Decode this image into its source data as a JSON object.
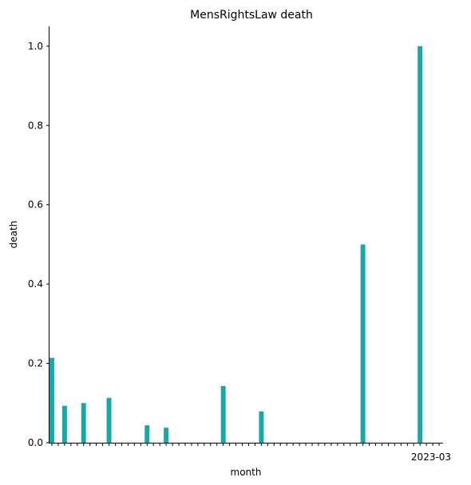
{
  "chart_data": {
    "type": "bar",
    "title": "MensRightsLaw death",
    "xlabel": "month",
    "ylabel": "death",
    "ylim": [
      0,
      1.05
    ],
    "yticks": [
      "0.0",
      "0.2",
      "0.4",
      "0.6",
      "0.8",
      "1.0"
    ],
    "ytick_values": [
      0,
      0.2,
      0.4,
      0.6,
      0.8,
      1.0
    ],
    "bar_color": "#17a9a9",
    "x_tick_label": "2023-03",
    "category_count": 62,
    "bars": [
      {
        "index": 0,
        "value": 0.214
      },
      {
        "index": 2,
        "value": 0.093
      },
      {
        "index": 5,
        "value": 0.1
      },
      {
        "index": 9,
        "value": 0.113
      },
      {
        "index": 15,
        "value": 0.044
      },
      {
        "index": 18,
        "value": 0.038
      },
      {
        "index": 27,
        "value": 0.143
      },
      {
        "index": 33,
        "value": 0.079
      },
      {
        "index": 49,
        "value": 0.5
      },
      {
        "index": 58,
        "value": 1.0
      }
    ],
    "grid": false,
    "legend": "none"
  }
}
